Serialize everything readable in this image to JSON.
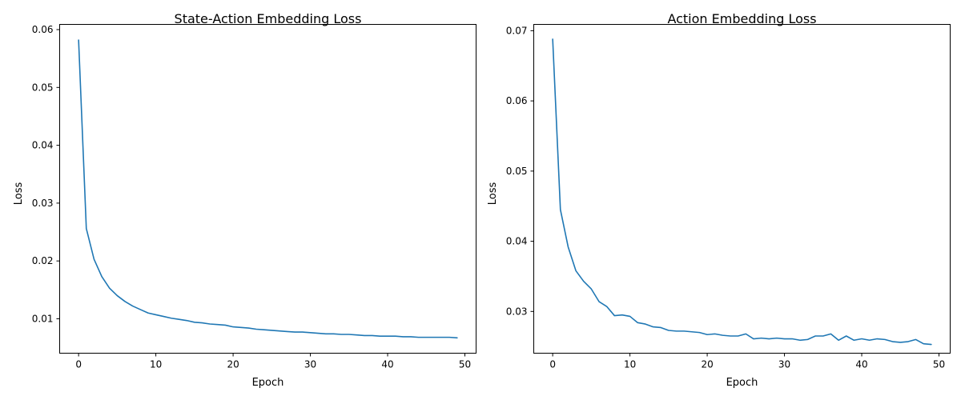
{
  "chart_data": [
    {
      "type": "line",
      "title": "State-Action Embedding Loss",
      "xlabel": "Epoch",
      "ylabel": "Loss",
      "xlim": [
        -2.45,
        51.45
      ],
      "ylim": [
        0.00405,
        0.0609
      ],
      "xticks": [
        0,
        10,
        20,
        30,
        40,
        50
      ],
      "yticks": [
        0.01,
        0.02,
        0.03,
        0.04,
        0.05,
        0.06
      ],
      "grid": false,
      "series": [
        {
          "color": "#1f77b4",
          "x": [
            0,
            1,
            2,
            3,
            4,
            5,
            6,
            7,
            8,
            9,
            10,
            11,
            12,
            13,
            14,
            15,
            16,
            17,
            18,
            19,
            20,
            21,
            22,
            23,
            24,
            25,
            26,
            27,
            28,
            29,
            30,
            31,
            32,
            33,
            34,
            35,
            36,
            37,
            38,
            39,
            40,
            41,
            42,
            43,
            44,
            45,
            46,
            47,
            48,
            49
          ],
          "y": [
            0.0582,
            0.0256,
            0.0203,
            0.0173,
            0.0153,
            0.014,
            0.013,
            0.0122,
            0.0116,
            0.011,
            0.0107,
            0.0104,
            0.0101,
            0.0099,
            0.0097,
            0.0094,
            0.0093,
            0.0091,
            0.009,
            0.0089,
            0.0086,
            0.0085,
            0.0084,
            0.0082,
            0.0081,
            0.008,
            0.0079,
            0.0078,
            0.0077,
            0.0077,
            0.0076,
            0.0075,
            0.0074,
            0.0074,
            0.0073,
            0.0073,
            0.0072,
            0.0071,
            0.0071,
            0.007,
            0.007,
            0.007,
            0.0069,
            0.0069,
            0.0068,
            0.0068,
            0.0068,
            0.0068,
            0.0068,
            0.0067
          ]
        }
      ]
    },
    {
      "type": "line",
      "title": "Action Embedding Loss",
      "xlabel": "Epoch",
      "ylabel": "Loss",
      "xlim": [
        -2.45,
        51.45
      ],
      "ylim": [
        0.02405,
        0.0709
      ],
      "xticks": [
        0,
        10,
        20,
        30,
        40,
        50
      ],
      "yticks": [
        0.03,
        0.04,
        0.05,
        0.06,
        0.07
      ],
      "grid": false,
      "series": [
        {
          "color": "#1f77b4",
          "x": [
            0,
            1,
            2,
            3,
            4,
            5,
            6,
            7,
            8,
            9,
            10,
            11,
            12,
            13,
            14,
            15,
            16,
            17,
            18,
            19,
            20,
            21,
            22,
            23,
            24,
            25,
            26,
            27,
            28,
            29,
            30,
            31,
            32,
            33,
            34,
            35,
            36,
            37,
            38,
            39,
            40,
            41,
            42,
            43,
            44,
            45,
            46,
            47,
            48,
            49
          ],
          "y": [
            0.0688,
            0.0445,
            0.0392,
            0.0358,
            0.0343,
            0.0332,
            0.0314,
            0.0307,
            0.0294,
            0.0295,
            0.0293,
            0.0284,
            0.0282,
            0.0278,
            0.0277,
            0.0273,
            0.0272,
            0.0272,
            0.0271,
            0.027,
            0.0267,
            0.0268,
            0.0266,
            0.0265,
            0.0265,
            0.0268,
            0.0261,
            0.0262,
            0.0261,
            0.0262,
            0.0261,
            0.0261,
            0.0259,
            0.026,
            0.0265,
            0.0265,
            0.0268,
            0.0259,
            0.0265,
            0.0259,
            0.0261,
            0.0259,
            0.0261,
            0.026,
            0.0257,
            0.0256,
            0.0257,
            0.026,
            0.0254,
            0.0253
          ]
        }
      ]
    }
  ]
}
